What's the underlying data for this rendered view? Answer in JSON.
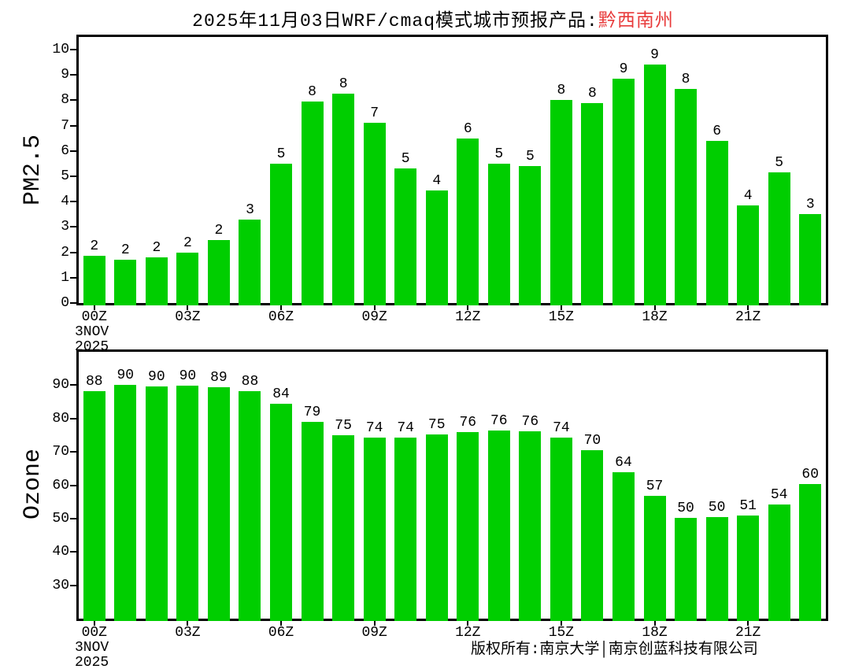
{
  "title": {
    "prefix": "2025年11月03日WRF/cmaq模式城市预报产品:",
    "region": "黔西南州"
  },
  "colors": {
    "bar": "#00ce00",
    "title_red": "#e83a3a",
    "axis": "#000000",
    "background": "#ffffff"
  },
  "chart_data": [
    {
      "type": "bar",
      "id": "pm25",
      "ylabel": "PM2.5",
      "ylim": [
        0,
        10.5
      ],
      "yticks": [
        0,
        1,
        2,
        3,
        4,
        5,
        6,
        7,
        8,
        9,
        10
      ],
      "xtick_labels": [
        "00Z",
        "03Z",
        "06Z",
        "09Z",
        "12Z",
        "15Z",
        "18Z",
        "21Z"
      ],
      "xtick_bar_index": [
        0,
        3,
        6,
        9,
        12,
        15,
        18,
        21
      ],
      "x_start_date": [
        "3NOV",
        "2025"
      ],
      "values": [
        1.85,
        1.7,
        1.8,
        2.0,
        2.5,
        3.3,
        5.5,
        7.95,
        8.25,
        7.1,
        5.3,
        4.45,
        6.5,
        5.5,
        5.4,
        8.0,
        7.9,
        8.85,
        9.4,
        8.45,
        6.4,
        3.85,
        5.15,
        3.5
      ],
      "bar_labels": [
        "2",
        "2",
        "2",
        "2",
        "2",
        "3",
        "5",
        "8",
        "8",
        "7",
        "5",
        "4",
        "6",
        "5",
        "5",
        "8",
        "8",
        "9",
        "9",
        "8",
        "6",
        "4",
        "5",
        "3"
      ],
      "grid": false,
      "legend": "none"
    },
    {
      "type": "bar",
      "id": "ozone",
      "ylabel": "Ozone",
      "ylim": [
        20,
        100
      ],
      "yticks": [
        30,
        40,
        50,
        60,
        70,
        80,
        90
      ],
      "xtick_labels": [
        "00Z",
        "03Z",
        "06Z",
        "09Z",
        "12Z",
        "15Z",
        "18Z",
        "21Z"
      ],
      "xtick_bar_index": [
        0,
        3,
        6,
        9,
        12,
        15,
        18,
        21
      ],
      "x_start_date": [
        "3NOV",
        "2025"
      ],
      "values": [
        88.2,
        90.1,
        89.6,
        89.8,
        89.4,
        88.1,
        84.5,
        79.0,
        75.1,
        74.3,
        74.2,
        75.2,
        76.0,
        76.4,
        76.1,
        74.3,
        70.5,
        64.0,
        56.8,
        50.3,
        50.5,
        51.0,
        54.2,
        60.3
      ],
      "bar_labels": [
        "88",
        "90",
        "90",
        "90",
        "89",
        "88",
        "84",
        "79",
        "75",
        "74",
        "74",
        "75",
        "76",
        "76",
        "76",
        "74",
        "70",
        "64",
        "57",
        "50",
        "50",
        "51",
        "54",
        "60"
      ],
      "grid": false,
      "legend": "none"
    }
  ],
  "footer": {
    "copyright": "版权所有:南京大学│南京创蓝科技有限公司"
  }
}
